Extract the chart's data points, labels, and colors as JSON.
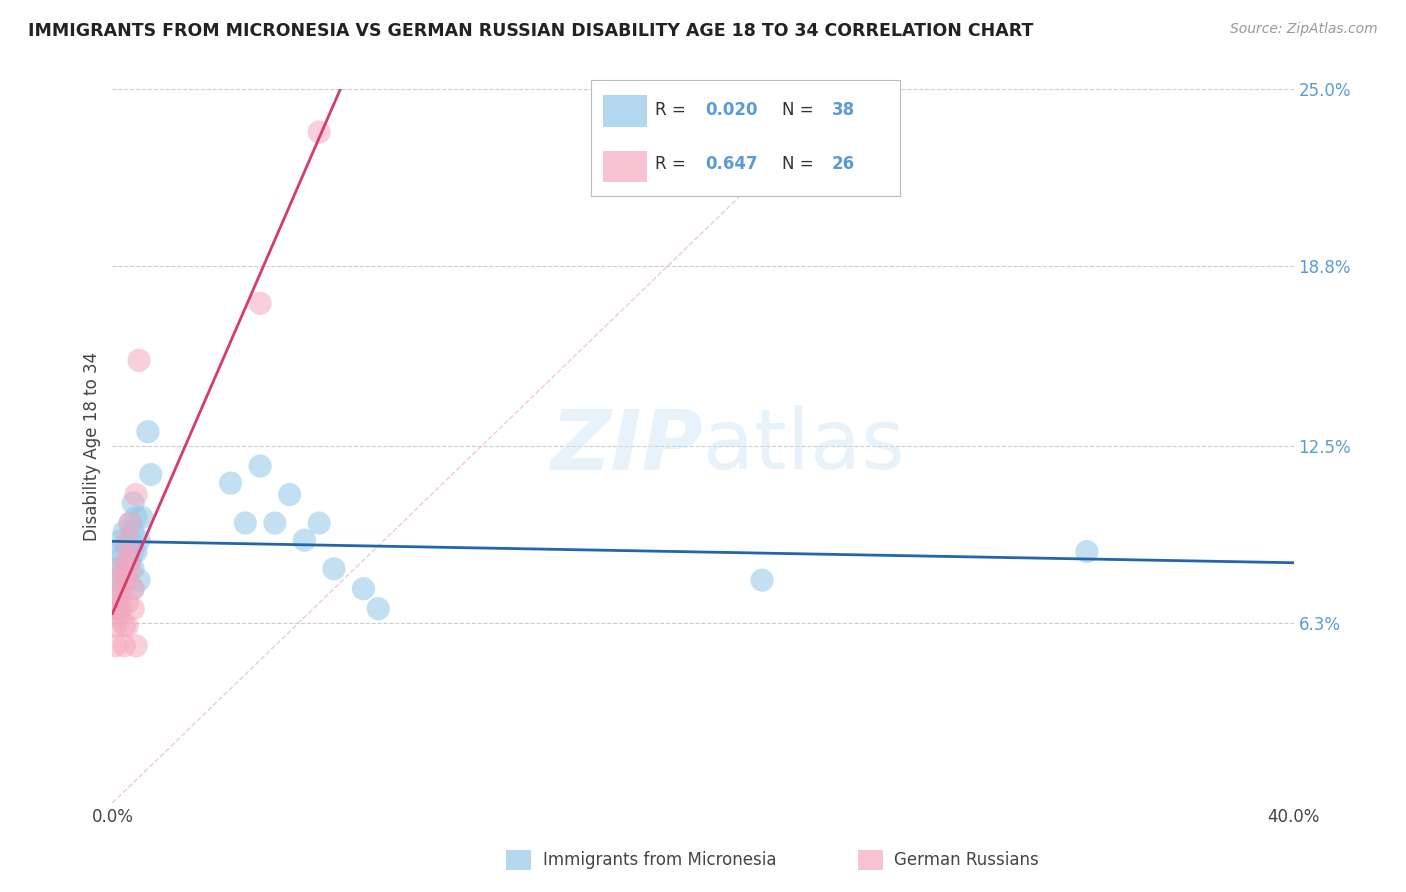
{
  "title": "IMMIGRANTS FROM MICRONESIA VS GERMAN RUSSIAN DISABILITY AGE 18 TO 34 CORRELATION CHART",
  "source": "Source: ZipAtlas.com",
  "ylabel": "Disability Age 18 to 34",
  "xlim": [
    0.0,
    0.4
  ],
  "ylim": [
    0.0,
    0.25
  ],
  "ytick_positions": [
    0.063,
    0.125,
    0.188,
    0.25
  ],
  "ytick_labels": [
    "6.3%",
    "12.5%",
    "18.8%",
    "25.0%"
  ],
  "blue_color": "#93c6e8",
  "pink_color": "#f4a8be",
  "trend_blue": "#2166ac",
  "trend_pink": "#d63a6e",
  "tick_color": "#5b9bd5",
  "blue_scatter_x": [
    0.002,
    0.002,
    0.002,
    0.002,
    0.003,
    0.003,
    0.003,
    0.004,
    0.004,
    0.005,
    0.005,
    0.006,
    0.006,
    0.006,
    0.007,
    0.007,
    0.007,
    0.007,
    0.007,
    0.008,
    0.008,
    0.009,
    0.009,
    0.01,
    0.012,
    0.013,
    0.04,
    0.045,
    0.05,
    0.055,
    0.06,
    0.065,
    0.07,
    0.075,
    0.085,
    0.09,
    0.22,
    0.33
  ],
  "blue_scatter_y": [
    0.088,
    0.082,
    0.075,
    0.068,
    0.092,
    0.086,
    0.08,
    0.095,
    0.078,
    0.09,
    0.084,
    0.098,
    0.092,
    0.085,
    0.105,
    0.095,
    0.088,
    0.082,
    0.075,
    0.1,
    0.088,
    0.092,
    0.078,
    0.1,
    0.13,
    0.115,
    0.112,
    0.098,
    0.118,
    0.098,
    0.108,
    0.092,
    0.098,
    0.082,
    0.075,
    0.068,
    0.078,
    0.088
  ],
  "pink_scatter_x": [
    0.001,
    0.001,
    0.001,
    0.002,
    0.002,
    0.002,
    0.003,
    0.003,
    0.003,
    0.004,
    0.004,
    0.005,
    0.005,
    0.005,
    0.005,
    0.005,
    0.006,
    0.006,
    0.006,
    0.007,
    0.007,
    0.008,
    0.008,
    0.009,
    0.05,
    0.07
  ],
  "pink_scatter_y": [
    0.068,
    0.062,
    0.055,
    0.078,
    0.072,
    0.065,
    0.082,
    0.075,
    0.068,
    0.062,
    0.055,
    0.092,
    0.085,
    0.078,
    0.07,
    0.062,
    0.098,
    0.088,
    0.082,
    0.075,
    0.068,
    0.055,
    0.108,
    0.155,
    0.175,
    0.235
  ],
  "blue_trend_x": [
    0.0,
    0.4
  ],
  "blue_trend_y": [
    0.086,
    0.09
  ],
  "pink_trend_x_start": 0.0,
  "pink_trend_x_end": 0.075,
  "diag_line_x": [
    0.0,
    0.25
  ],
  "diag_line_y": [
    0.0,
    0.25
  ],
  "watermark": "ZIPatlas",
  "background_color": "#ffffff",
  "grid_color": "#cccccc"
}
